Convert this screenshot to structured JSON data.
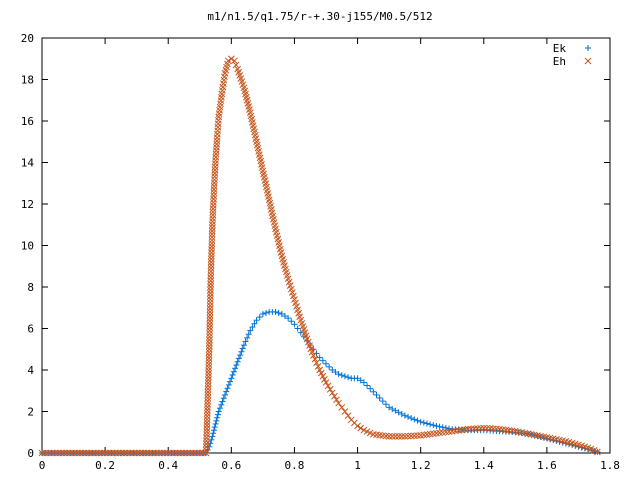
{
  "chart_data": {
    "type": "scatter",
    "title": "m1/n1.5/q1.75/r-+.30-j155/M0.5/512",
    "xlabel": "",
    "ylabel": "",
    "xlim": [
      0,
      1.8
    ],
    "ylim": [
      0,
      20
    ],
    "x_ticks": [
      "0",
      "0.2",
      "0.4",
      "0.6",
      "0.8",
      "1",
      "1.2",
      "1.4",
      "1.6",
      "1.8"
    ],
    "y_ticks": [
      "0",
      "2",
      "4",
      "6",
      "8",
      "10",
      "12",
      "14",
      "16",
      "18",
      "20"
    ],
    "grid": false,
    "legend_position": "top-right",
    "series": [
      {
        "name": "Ek",
        "marker": "plus",
        "color": "#0072d8",
        "points": [
          [
            0.0,
            0
          ],
          [
            0.1,
            0
          ],
          [
            0.2,
            0
          ],
          [
            0.3,
            0
          ],
          [
            0.4,
            0
          ],
          [
            0.52,
            0
          ],
          [
            0.53,
            0.3
          ],
          [
            0.54,
            0.8
          ],
          [
            0.55,
            1.4
          ],
          [
            0.56,
            2.0
          ],
          [
            0.58,
            2.8
          ],
          [
            0.6,
            3.6
          ],
          [
            0.62,
            4.4
          ],
          [
            0.64,
            5.2
          ],
          [
            0.66,
            5.9
          ],
          [
            0.68,
            6.4
          ],
          [
            0.7,
            6.7
          ],
          [
            0.72,
            6.8
          ],
          [
            0.74,
            6.8
          ],
          [
            0.76,
            6.7
          ],
          [
            0.78,
            6.5
          ],
          [
            0.8,
            6.2
          ],
          [
            0.82,
            5.8
          ],
          [
            0.84,
            5.4
          ],
          [
            0.86,
            5.0
          ],
          [
            0.88,
            4.6
          ],
          [
            0.9,
            4.3
          ],
          [
            0.92,
            4.0
          ],
          [
            0.94,
            3.8
          ],
          [
            0.96,
            3.7
          ],
          [
            0.98,
            3.6
          ],
          [
            1.0,
            3.6
          ],
          [
            1.02,
            3.4
          ],
          [
            1.04,
            3.1
          ],
          [
            1.06,
            2.8
          ],
          [
            1.08,
            2.5
          ],
          [
            1.1,
            2.2
          ],
          [
            1.15,
            1.8
          ],
          [
            1.2,
            1.5
          ],
          [
            1.25,
            1.3
          ],
          [
            1.3,
            1.15
          ],
          [
            1.35,
            1.1
          ],
          [
            1.4,
            1.1
          ],
          [
            1.45,
            1.05
          ],
          [
            1.5,
            1.0
          ],
          [
            1.55,
            0.9
          ],
          [
            1.6,
            0.7
          ],
          [
            1.65,
            0.5
          ],
          [
            1.7,
            0.3
          ],
          [
            1.74,
            0.15
          ],
          [
            1.76,
            0.05
          ]
        ]
      },
      {
        "name": "Eh",
        "marker": "cross",
        "color": "#c8541a",
        "points": [
          [
            0.0,
            0
          ],
          [
            0.1,
            0
          ],
          [
            0.2,
            0
          ],
          [
            0.3,
            0
          ],
          [
            0.4,
            0
          ],
          [
            0.52,
            0
          ],
          [
            0.53,
            5.0
          ],
          [
            0.535,
            8.6
          ],
          [
            0.54,
            11.0
          ],
          [
            0.545,
            12.7
          ],
          [
            0.55,
            14.1
          ],
          [
            0.555,
            15.2
          ],
          [
            0.56,
            16.2
          ],
          [
            0.57,
            17.3
          ],
          [
            0.58,
            18.3
          ],
          [
            0.59,
            18.9
          ],
          [
            0.6,
            19.0
          ],
          [
            0.61,
            18.9
          ],
          [
            0.62,
            18.5
          ],
          [
            0.64,
            17.6
          ],
          [
            0.66,
            16.4
          ],
          [
            0.68,
            15.0
          ],
          [
            0.7,
            13.6
          ],
          [
            0.72,
            12.2
          ],
          [
            0.74,
            10.8
          ],
          [
            0.76,
            9.5
          ],
          [
            0.78,
            8.4
          ],
          [
            0.8,
            7.4
          ],
          [
            0.82,
            6.4
          ],
          [
            0.84,
            5.5
          ],
          [
            0.86,
            4.7
          ],
          [
            0.88,
            4.0
          ],
          [
            0.9,
            3.4
          ],
          [
            0.92,
            2.9
          ],
          [
            0.94,
            2.4
          ],
          [
            0.96,
            2.0
          ],
          [
            0.98,
            1.6
          ],
          [
            1.0,
            1.3
          ],
          [
            1.02,
            1.1
          ],
          [
            1.05,
            0.9
          ],
          [
            1.1,
            0.8
          ],
          [
            1.15,
            0.8
          ],
          [
            1.2,
            0.85
          ],
          [
            1.25,
            0.95
          ],
          [
            1.3,
            1.05
          ],
          [
            1.35,
            1.15
          ],
          [
            1.4,
            1.2
          ],
          [
            1.45,
            1.15
          ],
          [
            1.5,
            1.05
          ],
          [
            1.55,
            0.9
          ],
          [
            1.6,
            0.75
          ],
          [
            1.65,
            0.6
          ],
          [
            1.7,
            0.4
          ],
          [
            1.74,
            0.2
          ],
          [
            1.76,
            0.05
          ]
        ]
      }
    ]
  }
}
